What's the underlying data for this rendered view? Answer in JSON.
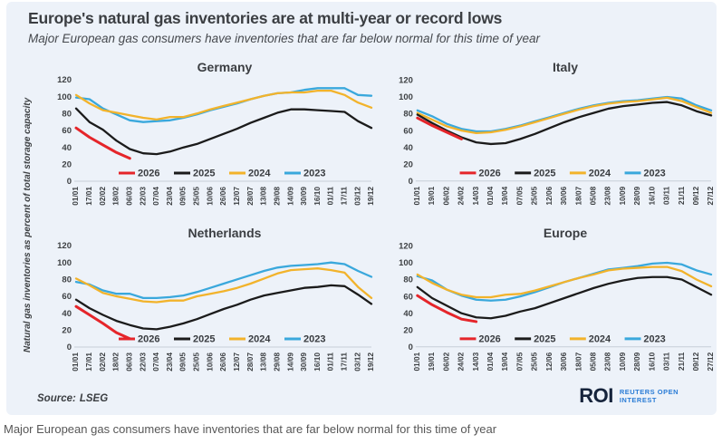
{
  "header": {
    "title": "Europe's natural gas inventories are at multi-year or record lows",
    "subtitle": "Major European gas consumers have inventories that are far below normal for this time of year"
  },
  "y_axis_label": "Natural gas inventories as percent of total storage capacity",
  "caption": "Major European gas consumers have inventories that are far below normal for this time of year",
  "footer": {
    "source_label": "Source:",
    "source_value": "LSEG",
    "logo_text": "ROI",
    "logo_line1": "REUTERS OPEN",
    "logo_line2": "INTEREST"
  },
  "colors": {
    "card_bg": "#edf2f9",
    "red_2026": "#e5252a",
    "black_2025": "#1b1b1b",
    "gold_2024": "#f2b32b",
    "blue_2023": "#3aa8dc",
    "axis_text": "#3d4043",
    "logo_navy": "#16243c",
    "logo_blue": "#2a7cd6"
  },
  "chart_data": [
    {
      "type": "line",
      "title": "Germany",
      "ylim": [
        0,
        120
      ],
      "yticks": [
        0,
        20,
        40,
        60,
        80,
        100,
        120
      ],
      "legend_position": "inside-bottom-center",
      "grid": false,
      "categories": [
        "01/01",
        "17/01",
        "02/02",
        "18/02",
        "06/03",
        "22/03",
        "07/04",
        "23/04",
        "09/05",
        "25/05",
        "10/06",
        "26/06",
        "12/07",
        "28/07",
        "13/08",
        "29/08",
        "14/09",
        "30/09",
        "16/10",
        "01/11",
        "17/11",
        "03/12",
        "19/12"
      ],
      "series": [
        {
          "name": "2026",
          "color": "#e5252a",
          "values": [
            63,
            52,
            43,
            34,
            27,
            null,
            null,
            null,
            null,
            null,
            null,
            null,
            null,
            null,
            null,
            null,
            null,
            null,
            null,
            null,
            null,
            null,
            null
          ]
        },
        {
          "name": "2025",
          "color": "#1b1b1b",
          "values": [
            86,
            70,
            61,
            48,
            38,
            33,
            32,
            35,
            40,
            44,
            50,
            56,
            62,
            69,
            75,
            81,
            85,
            85,
            84,
            83,
            82,
            71,
            63
          ]
        },
        {
          "name": "2024",
          "color": "#f2b32b",
          "values": [
            102,
            92,
            84,
            81,
            78,
            75,
            73,
            76,
            76,
            80,
            85,
            89,
            93,
            97,
            101,
            104,
            105,
            105,
            107,
            107,
            102,
            93,
            87
          ]
        },
        {
          "name": "2023",
          "color": "#3aa8dc",
          "values": [
            99,
            97,
            86,
            79,
            72,
            70,
            71,
            72,
            75,
            79,
            84,
            88,
            92,
            97,
            101,
            104,
            105,
            108,
            110,
            110,
            110,
            102,
            101
          ]
        }
      ]
    },
    {
      "type": "line",
      "title": "Italy",
      "ylim": [
        0,
        120
      ],
      "yticks": [
        0,
        20,
        40,
        60,
        80,
        100,
        120
      ],
      "legend_position": "inside-bottom-center",
      "grid": false,
      "categories": [
        "01/01",
        "19/01",
        "06/02",
        "24/02",
        "14/03",
        "01/04",
        "19/04",
        "07/05",
        "25/05",
        "12/06",
        "30/06",
        "18/07",
        "05/08",
        "23/08",
        "10/09",
        "28/09",
        "16/10",
        "03/11",
        "21/11",
        "09/12",
        "27/12"
      ],
      "series": [
        {
          "name": "2026",
          "color": "#e5252a",
          "values": [
            75,
            66,
            58,
            50,
            null,
            null,
            null,
            null,
            null,
            null,
            null,
            null,
            null,
            null,
            null,
            null,
            null,
            null,
            null,
            null,
            null
          ]
        },
        {
          "name": "2025",
          "color": "#1b1b1b",
          "values": [
            79,
            69,
            60,
            52,
            46,
            44,
            45,
            50,
            56,
            63,
            70,
            76,
            81,
            86,
            89,
            91,
            93,
            94,
            90,
            83,
            78
          ]
        },
        {
          "name": "2024",
          "color": "#f2b32b",
          "values": [
            81,
            73,
            65,
            60,
            57,
            58,
            61,
            65,
            70,
            75,
            80,
            85,
            89,
            92,
            94,
            95,
            97,
            99,
            95,
            88,
            81
          ]
        },
        {
          "name": "2023",
          "color": "#3aa8dc",
          "values": [
            84,
            77,
            68,
            62,
            59,
            59,
            62,
            66,
            71,
            76,
            81,
            86,
            90,
            93,
            95,
            96,
            98,
            100,
            98,
            90,
            84
          ]
        }
      ]
    },
    {
      "type": "line",
      "title": "Netherlands",
      "ylim": [
        0,
        120
      ],
      "yticks": [
        0,
        20,
        40,
        60,
        80,
        100,
        120
      ],
      "legend_position": "inside-bottom-center",
      "grid": false,
      "categories": [
        "01/01",
        "17/01",
        "02/02",
        "18/02",
        "06/03",
        "22/03",
        "07/04",
        "23/04",
        "09/05",
        "25/05",
        "10/06",
        "26/06",
        "12/07",
        "28/07",
        "13/08",
        "29/08",
        "14/09",
        "30/09",
        "16/10",
        "01/11",
        "17/11",
        "03/12",
        "19/12"
      ],
      "series": [
        {
          "name": "2026",
          "color": "#e5252a",
          "values": [
            48,
            38,
            28,
            17,
            10,
            null,
            null,
            null,
            null,
            null,
            null,
            null,
            null,
            null,
            null,
            null,
            null,
            null,
            null,
            null,
            null,
            null,
            null
          ]
        },
        {
          "name": "2025",
          "color": "#1b1b1b",
          "values": [
            56,
            46,
            38,
            31,
            26,
            22,
            21,
            24,
            28,
            33,
            39,
            45,
            50,
            56,
            61,
            64,
            67,
            70,
            71,
            73,
            72,
            62,
            51
          ]
        },
        {
          "name": "2024",
          "color": "#f2b32b",
          "values": [
            81,
            73,
            64,
            60,
            57,
            54,
            53,
            55,
            55,
            60,
            63,
            66,
            70,
            75,
            81,
            87,
            91,
            92,
            93,
            91,
            88,
            71,
            58
          ]
        },
        {
          "name": "2023",
          "color": "#3aa8dc",
          "values": [
            77,
            74,
            67,
            63,
            63,
            58,
            58,
            59,
            61,
            65,
            70,
            75,
            80,
            85,
            90,
            94,
            96,
            97,
            98,
            100,
            98,
            90,
            83
          ]
        }
      ]
    },
    {
      "type": "line",
      "title": "Europe",
      "ylim": [
        0,
        120
      ],
      "yticks": [
        0,
        20,
        40,
        60,
        80,
        100,
        120
      ],
      "legend_position": "inside-bottom-center",
      "grid": false,
      "categories": [
        "01/01",
        "19/01",
        "06/02",
        "24/02",
        "14/03",
        "01/04",
        "19/04",
        "07/05",
        "25/05",
        "12/06",
        "30/06",
        "18/07",
        "05/08",
        "23/08",
        "10/09",
        "28/09",
        "16/10",
        "03/11",
        "21/11",
        "09/12",
        "27/12"
      ],
      "series": [
        {
          "name": "2026",
          "color": "#e5252a",
          "values": [
            61,
            50,
            41,
            33,
            30,
            null,
            null,
            null,
            null,
            null,
            null,
            null,
            null,
            null,
            null,
            null,
            null,
            null,
            null,
            null,
            null
          ]
        },
        {
          "name": "2025",
          "color": "#1b1b1b",
          "values": [
            71,
            58,
            49,
            40,
            35,
            34,
            37,
            42,
            46,
            52,
            58,
            64,
            70,
            75,
            79,
            82,
            83,
            83,
            80,
            71,
            62
          ]
        },
        {
          "name": "2024",
          "color": "#f2b32b",
          "values": [
            86,
            76,
            68,
            62,
            59,
            59,
            62,
            63,
            67,
            72,
            77,
            82,
            86,
            91,
            93,
            94,
            95,
            95,
            90,
            80,
            72
          ]
        },
        {
          "name": "2023",
          "color": "#3aa8dc",
          "values": [
            84,
            79,
            68,
            61,
            56,
            55,
            56,
            60,
            65,
            71,
            77,
            82,
            87,
            92,
            94,
            96,
            99,
            100,
            98,
            91,
            86
          ]
        }
      ]
    }
  ]
}
